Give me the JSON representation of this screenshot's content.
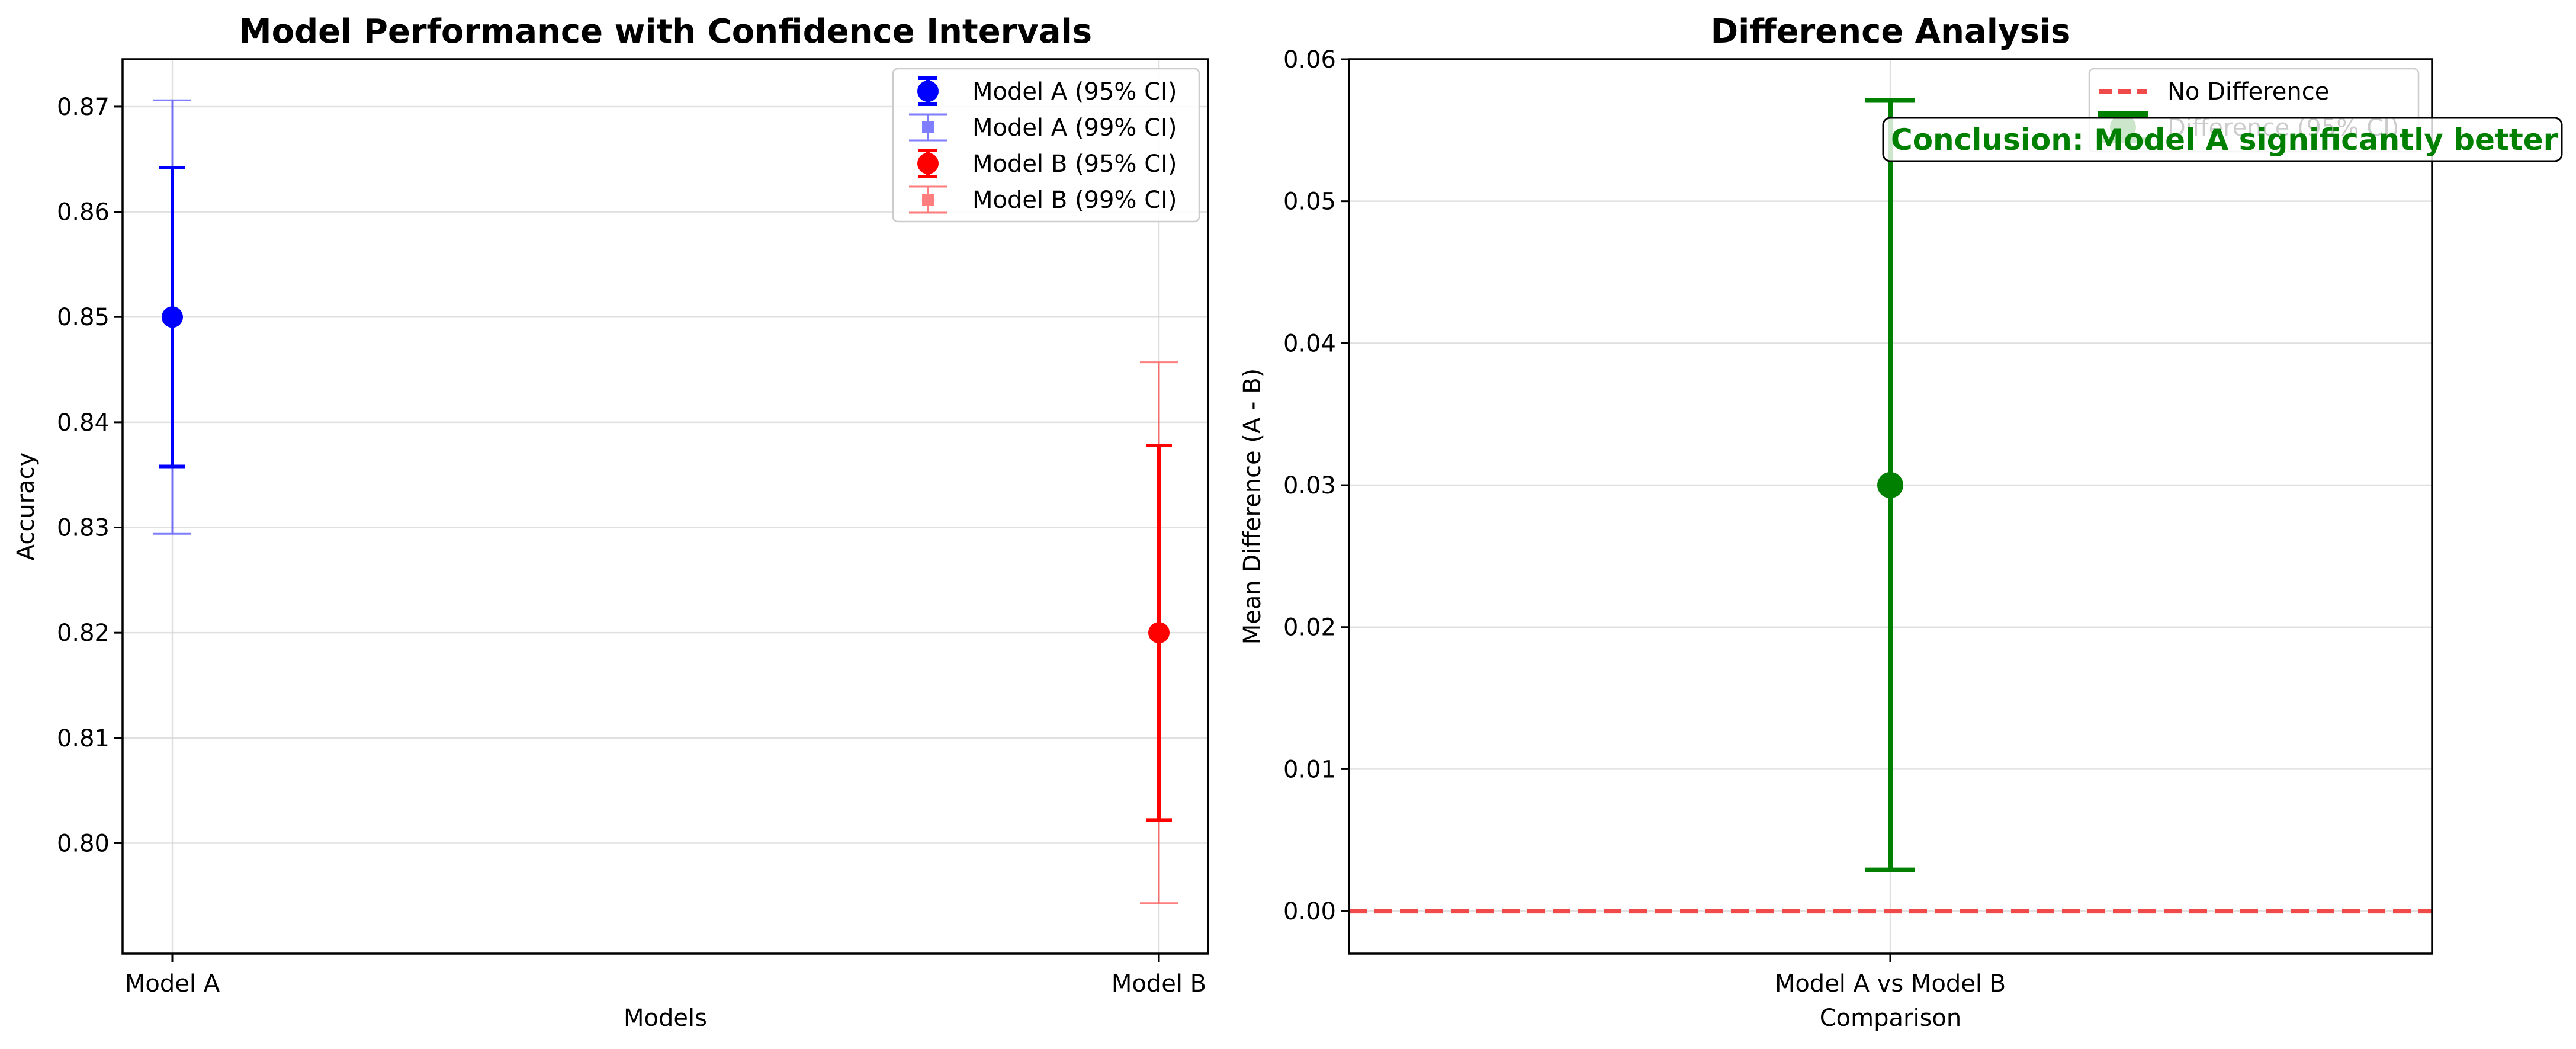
{
  "chart_data": [
    {
      "type": "errorbar",
      "title": "Model Performance with Confidence Intervals",
      "xlabel": "Models",
      "ylabel": "Accuracy",
      "categories": [
        "Model A",
        "Model B"
      ],
      "ylim": [
        0.7895,
        0.8745
      ],
      "yticks": [
        0.8,
        0.81,
        0.82,
        0.83,
        0.84,
        0.85,
        0.86,
        0.87
      ],
      "ytick_labels": [
        "0.80",
        "0.81",
        "0.82",
        "0.83",
        "0.84",
        "0.85",
        "0.86",
        "0.87"
      ],
      "grid": true,
      "legend_position": "top-right",
      "series": [
        {
          "name": "Model A (95% CI)",
          "category": "Model A",
          "mean": 0.85,
          "low": 0.8358,
          "high": 0.8642,
          "color": "#0000ff",
          "style": "95"
        },
        {
          "name": "Model A (99% CI)",
          "category": "Model A",
          "mean": 0.85,
          "low": 0.8294,
          "high": 0.8706,
          "color": "#0000ff",
          "style": "99"
        },
        {
          "name": "Model B (95% CI)",
          "category": "Model B",
          "mean": 0.82,
          "low": 0.8022,
          "high": 0.8378,
          "color": "#ff0000",
          "style": "95"
        },
        {
          "name": "Model B (99% CI)",
          "category": "Model B",
          "mean": 0.82,
          "low": 0.7943,
          "high": 0.8457,
          "color": "#ff0000",
          "style": "99"
        }
      ]
    },
    {
      "type": "errorbar",
      "title": "Difference Analysis",
      "xlabel": "Comparison",
      "ylabel": "Mean Difference (A - B)",
      "categories": [
        "Model A vs Model B"
      ],
      "ylim": [
        -0.003,
        0.06
      ],
      "yticks": [
        0.0,
        0.01,
        0.02,
        0.03,
        0.04,
        0.05,
        0.06
      ],
      "ytick_labels": [
        "0.00",
        "0.01",
        "0.02",
        "0.03",
        "0.04",
        "0.05",
        "0.06"
      ],
      "grid": true,
      "legend_position": "top-right",
      "reference_line": {
        "name": "No Difference",
        "value": 0.0,
        "color": "#f04a4a"
      },
      "series": [
        {
          "name": "Difference (95% CI)",
          "category": "Model A vs Model B",
          "mean": 0.03,
          "low": 0.0029,
          "high": 0.0571,
          "color": "#008000"
        }
      ],
      "annotation": "Conclusion: Model A significantly better"
    }
  ]
}
